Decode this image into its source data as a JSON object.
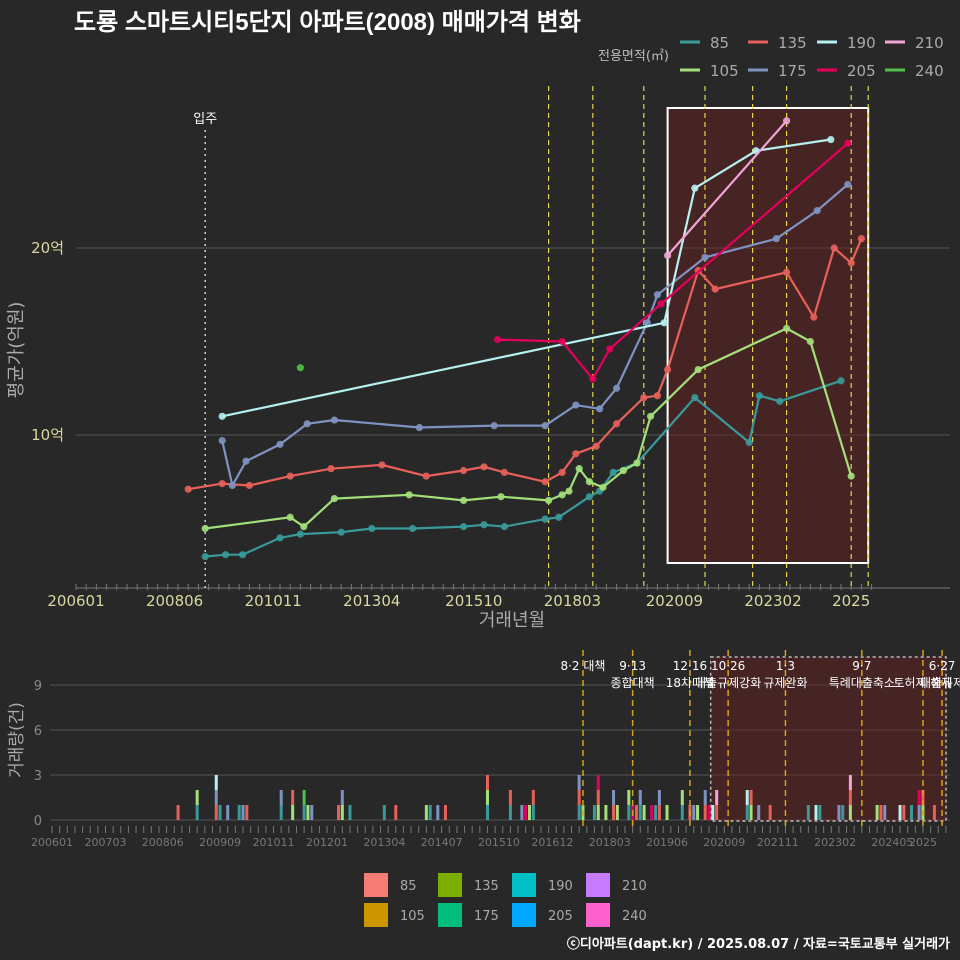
{
  "chart_data": {
    "type": "line",
    "title": "도룡 스마트시티5단지 아파트(2008) 매매가격 변화",
    "legend_title": "전용면적(㎡)",
    "legend_position": "top-right",
    "xlabel": "거래년월",
    "ylabel": "평균가(억원)",
    "x_ticks": [
      "200601",
      "200806",
      "201011",
      "201304",
      "201510",
      "201803",
      "202009",
      "202302",
      "2025"
    ],
    "y_ticks": [
      "10억",
      "20억"
    ],
    "move_in_label": "입주",
    "move_in_month": "200903",
    "colors": {
      "85": "#3a9a9a",
      "105": "#a3e07a",
      "135": "#e8605a",
      "175": "#7f93c2",
      "190": "#b6f1f1",
      "205": "#e6005c",
      "210": "#f2a5d8",
      "240": "#4fc14a"
    },
    "series": [
      {
        "name": "85",
        "points": [
          [
            "200903",
            3.5
          ],
          [
            "200909",
            3.6
          ],
          [
            "201002",
            3.6
          ],
          [
            "201101",
            4.5
          ],
          [
            "201107",
            4.7
          ],
          [
            "201207",
            4.8
          ],
          [
            "201304",
            5.0
          ],
          [
            "201404",
            5.0
          ],
          [
            "201507",
            5.1
          ],
          [
            "201601",
            5.2
          ],
          [
            "201607",
            5.1
          ],
          [
            "201707",
            5.5
          ],
          [
            "201711",
            5.6
          ],
          [
            "201808",
            6.7
          ],
          [
            "201811",
            7.0
          ],
          [
            "201903",
            8.0
          ],
          [
            "201910",
            8.5
          ],
          [
            "202103",
            12.0
          ],
          [
            "202207",
            9.6
          ],
          [
            "202210",
            12.1
          ],
          [
            "202304",
            11.8
          ],
          [
            "202410",
            12.9
          ]
        ]
      },
      {
        "name": "105",
        "points": [
          [
            "200903",
            5.0
          ],
          [
            "201104",
            5.6
          ],
          [
            "201108",
            5.1
          ],
          [
            "201205",
            6.6
          ],
          [
            "201403",
            6.8
          ],
          [
            "201507",
            6.5
          ],
          [
            "201606",
            6.7
          ],
          [
            "201708",
            6.5
          ],
          [
            "201712",
            6.8
          ],
          [
            "201802",
            7.0
          ],
          [
            "201805",
            8.2
          ],
          [
            "201808",
            7.5
          ],
          [
            "201812",
            7.2
          ],
          [
            "201906",
            8.1
          ],
          [
            "201910",
            8.5
          ],
          [
            "202002",
            11.0
          ],
          [
            "202104",
            13.5
          ],
          [
            "202306",
            15.7
          ],
          [
            "202401",
            15.0
          ],
          [
            "202501",
            7.8
          ]
        ]
      },
      {
        "name": "135",
        "points": [
          [
            "200810",
            7.1
          ],
          [
            "200908",
            7.4
          ],
          [
            "201004",
            7.3
          ],
          [
            "201104",
            7.8
          ],
          [
            "201204",
            8.2
          ],
          [
            "201307",
            8.4
          ],
          [
            "201408",
            7.8
          ],
          [
            "201507",
            8.1
          ],
          [
            "201601",
            8.3
          ],
          [
            "201607",
            8.0
          ],
          [
            "201707",
            7.5
          ],
          [
            "201712",
            8.0
          ],
          [
            "201804",
            9.0
          ],
          [
            "201810",
            9.4
          ],
          [
            "201904",
            10.6
          ],
          [
            "201912",
            12.0
          ],
          [
            "202004",
            12.1
          ],
          [
            "202007",
            13.5
          ],
          [
            "202104",
            18.8
          ],
          [
            "202109",
            17.8
          ],
          [
            "202306",
            18.7
          ],
          [
            "202402",
            16.3
          ],
          [
            "202408",
            20.0
          ],
          [
            "202501",
            19.2
          ],
          [
            "202504",
            20.5
          ]
        ]
      },
      {
        "name": "175",
        "points": [
          [
            "200908",
            9.7
          ],
          [
            "200911",
            7.3
          ],
          [
            "201003",
            8.6
          ],
          [
            "201101",
            9.5
          ],
          [
            "201109",
            10.6
          ],
          [
            "201205",
            10.8
          ],
          [
            "201406",
            10.4
          ],
          [
            "201604",
            10.5
          ],
          [
            "201707",
            10.5
          ],
          [
            "201804",
            11.6
          ],
          [
            "201811",
            11.4
          ],
          [
            "201904",
            12.5
          ],
          [
            "202001",
            16.0
          ],
          [
            "202004",
            17.5
          ],
          [
            "202106",
            19.5
          ],
          [
            "202303",
            20.5
          ],
          [
            "202403",
            22.0
          ],
          [
            "202412",
            23.4
          ]
        ]
      },
      {
        "name": "190",
        "points": [
          [
            "200908",
            11.0
          ],
          [
            "202006",
            16.0
          ],
          [
            "202103",
            23.2
          ],
          [
            "202209",
            25.2
          ],
          [
            "202407",
            25.8
          ]
        ]
      },
      {
        "name": "205",
        "points": [
          [
            "201605",
            15.1
          ],
          [
            "201712",
            15.0
          ],
          [
            "201809",
            13.0
          ],
          [
            "201902",
            14.6
          ],
          [
            "202005",
            17.0
          ],
          [
            "202412",
            25.6
          ]
        ]
      },
      {
        "name": "210",
        "points": [
          [
            "202007",
            19.6
          ],
          [
            "202306",
            26.8
          ]
        ]
      },
      {
        "name": "240",
        "points": [
          [
            "201107",
            13.6
          ]
        ]
      }
    ],
    "policy_lines_top": [
      "201708",
      "201809",
      "201912",
      "202106",
      "202208",
      "202306",
      "202501",
      "202506"
    ],
    "highlight_region": [
      "202007",
      "202506"
    ],
    "volume_chart": {
      "type": "bar",
      "ylabel": "거래량(건)",
      "y_ticks": [
        "0",
        "3",
        "6",
        "9"
      ],
      "x_ticks": [
        "200601",
        "200703",
        "200806",
        "200909",
        "201011",
        "201201",
        "201304",
        "201407",
        "201510",
        "201612",
        "201803",
        "201906",
        "202009",
        "202111",
        "202302",
        "202405",
        "2025"
      ],
      "annotations": [
        {
          "month": "201708",
          "lines": [
            "8·2 대책"
          ]
        },
        {
          "month": "201809",
          "lines": [
            "9·13",
            "종합대책"
          ]
        },
        {
          "month": "201912",
          "lines": [
            "12·16",
            "18차대책"
          ]
        },
        {
          "month": "202010",
          "lines": [
            "10·26",
            "대출규제강화"
          ]
        },
        {
          "month": "202201",
          "lines": [
            "1·3",
            "규제완화"
          ]
        },
        {
          "month": "202309",
          "lines": [
            "9·7",
            "특례대출축소"
          ]
        },
        {
          "month": "202501",
          "lines": [
            "",
            "토허제 해제"
          ]
        },
        {
          "month": "202506",
          "lines": [
            "6·27",
            "대출규제"
          ]
        }
      ]
    }
  },
  "footer": "ⓒ디아파트(dapt.kr) / 2025.08.07 / 자료=국토교통부 실거래가"
}
